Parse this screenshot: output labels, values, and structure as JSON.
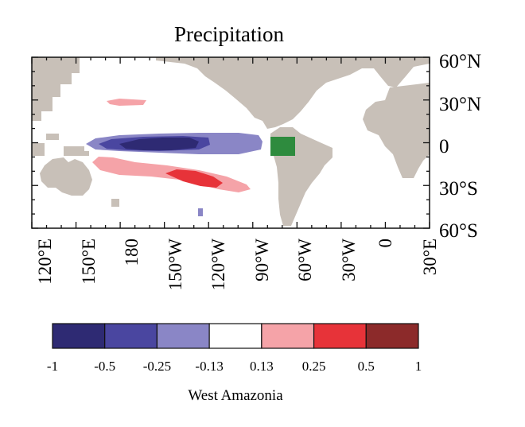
{
  "title": "Precipitation",
  "colorbar_title": "West Amazonia",
  "lat_labels": [
    "60°N",
    "30°N",
    "0",
    "30°S",
    "60°S"
  ],
  "lon_labels": [
    "120°E",
    "150°E",
    "180",
    "150°W",
    "120°W",
    "90°W",
    "60°W",
    "30°W",
    "0",
    "30°E"
  ],
  "colorbar": {
    "levels": [
      "-1",
      "-0.5",
      "-0.25",
      "-0.13",
      "0.13",
      "0.25",
      "0.5",
      "1"
    ],
    "colors": [
      "#2e2a73",
      "#4a46a0",
      "#8a86c6",
      "#ffffff",
      "#f5a3a8",
      "#e73339",
      "#8c2a2a"
    ]
  },
  "colors": {
    "land": "#c8c0b8",
    "ocean": "#ffffff",
    "region_box": "#2e8b3e"
  },
  "region_box": {
    "lon_range": [
      -80,
      -65
    ],
    "lat_range": [
      -8,
      5
    ]
  }
}
